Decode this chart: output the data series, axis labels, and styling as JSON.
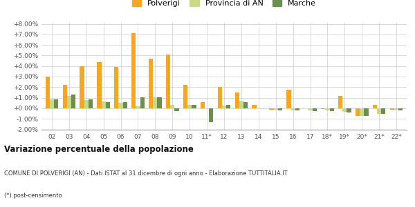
{
  "categories": [
    "02",
    "03",
    "04",
    "05",
    "06",
    "07",
    "08",
    "09",
    "10",
    "11*",
    "12",
    "13",
    "14",
    "15",
    "16",
    "17",
    "18*",
    "19*",
    "20*",
    "21*",
    "22*"
  ],
  "polverigi": [
    3.0,
    2.2,
    4.0,
    4.4,
    3.9,
    7.1,
    4.7,
    5.1,
    2.2,
    0.6,
    2.05,
    1.5,
    0.35,
    -0.15,
    1.75,
    0.0,
    -0.1,
    1.2,
    -0.75,
    0.35,
    -0.15
  ],
  "provincia_an": [
    0.85,
    1.2,
    0.8,
    0.65,
    0.5,
    0.2,
    1.05,
    0.35,
    0.3,
    0.0,
    0.25,
    0.7,
    0.0,
    -0.15,
    -0.2,
    -0.2,
    -0.2,
    -0.35,
    -0.75,
    -0.5,
    -0.15
  ],
  "marche": [
    0.85,
    1.3,
    0.85,
    0.6,
    0.55,
    1.05,
    1.05,
    -0.3,
    0.3,
    -1.3,
    0.3,
    0.55,
    0.0,
    -0.2,
    -0.2,
    -0.25,
    -0.3,
    -0.4,
    -0.7,
    -0.55,
    -0.2
  ],
  "color_polverigi": "#f5a623",
  "color_provincia": "#c8d98a",
  "color_marche": "#6b8f4e",
  "title": "Variazione percentuale della popolazione",
  "subtitle": "COMUNE DI POLVERIGI (AN) - Dati ISTAT al 31 dicembre di ogni anno - Elaborazione TUTTITALIA.IT",
  "footnote": "(*) post-censimento",
  "ylim": [
    -2.0,
    8.0
  ],
  "yticks": [
    -2.0,
    -1.0,
    0.0,
    1.0,
    2.0,
    3.0,
    4.0,
    5.0,
    6.0,
    7.0,
    8.0
  ],
  "legend_labels": [
    "Polverigi",
    "Provincia di AN",
    "Marche"
  ],
  "background_color": "#ffffff"
}
